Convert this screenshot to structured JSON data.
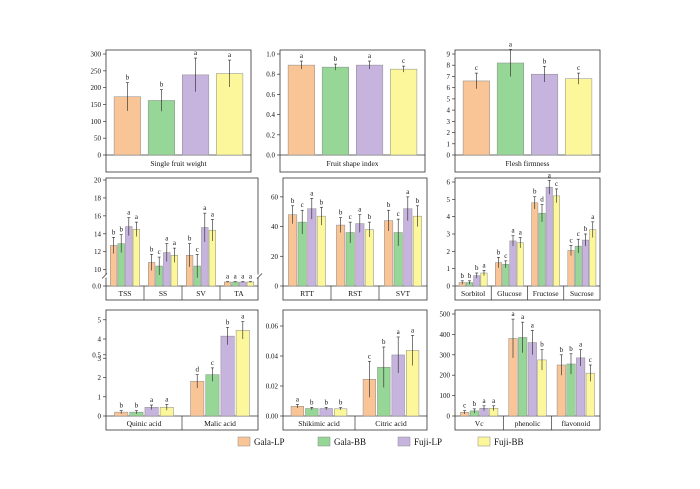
{
  "colors": {
    "Gala-LP": "#f9c597",
    "Gala-BB": "#96d696",
    "Fuji-LP": "#c7b4de",
    "Fuji-BB": "#fcf79a",
    "stroke": "#8a8a8a",
    "axis": "#333333"
  },
  "legend": [
    "Gala-LP",
    "Gala-BB",
    "Fuji-LP",
    "Fuji-BB"
  ],
  "chart_data": [
    {
      "type": "bar",
      "title": "",
      "groups": [
        "Single fruit weight"
      ],
      "series": [
        "Gala-LP",
        "Gala-BB",
        "Fuji-LP",
        "Fuji-BB"
      ],
      "values": [
        [
          173,
          162,
          238,
          242
        ]
      ],
      "errors": [
        [
          42,
          32,
          50,
          40
        ]
      ],
      "letters": [
        [
          "b",
          "b",
          "a",
          "a"
        ]
      ],
      "ylim": [
        0,
        300
      ],
      "yticks": [
        0,
        50,
        100,
        150,
        200,
        250,
        300
      ],
      "yticklabels": [
        "0",
        "50",
        "100",
        "150",
        "200",
        "250",
        "300"
      ]
    },
    {
      "type": "bar",
      "title": "",
      "groups": [
        "Fruit shape index"
      ],
      "series": [
        "Gala-LP",
        "Gala-BB",
        "Fuji-LP",
        "Fuji-BB"
      ],
      "values": [
        [
          0.89,
          0.87,
          0.89,
          0.85
        ]
      ],
      "errors": [
        [
          0.04,
          0.03,
          0.04,
          0.03
        ]
      ],
      "letters": [
        [
          "a",
          "b",
          "a",
          "c"
        ]
      ],
      "ylim": [
        0,
        1.0
      ],
      "yticks": [
        0,
        0.2,
        0.4,
        0.6,
        0.8,
        1.0
      ],
      "yticklabels": [
        "0.0",
        "0.2",
        "0.4",
        "0.6",
        "0.8",
        "1.0"
      ]
    },
    {
      "type": "bar",
      "title": "",
      "groups": [
        "Flesh firmness"
      ],
      "series": [
        "Gala-LP",
        "Gala-BB",
        "Fuji-LP",
        "Fuji-BB"
      ],
      "values": [
        [
          6.6,
          8.2,
          7.2,
          6.8
        ]
      ],
      "errors": [
        [
          0.7,
          1.2,
          0.7,
          0.5
        ]
      ],
      "letters": [
        [
          "c",
          "a",
          "b",
          "c"
        ]
      ],
      "ylim": [
        0,
        9
      ],
      "yticks": [
        0,
        1,
        2,
        3,
        4,
        5,
        6,
        7,
        8,
        9
      ],
      "yticklabels": [
        "0",
        "1",
        "2",
        "3",
        "4",
        "5",
        "6",
        "7",
        "8",
        "9"
      ]
    },
    {
      "type": "bar",
      "title": "",
      "groups": [
        "TSS",
        "SS",
        "SV",
        "TA"
      ],
      "series": [
        "Gala-LP",
        "Gala-BB",
        "Fuji-LP",
        "Fuji-BB"
      ],
      "values": [
        [
          12.7,
          12.9,
          14.8,
          14.5
        ],
        [
          10.8,
          10.4,
          11.9,
          11.6
        ],
        [
          11.6,
          10.4,
          14.7,
          14.4
        ],
        [
          0.2,
          0.2,
          0.2,
          0.2
        ]
      ],
      "errors": [
        [
          0.9,
          1.0,
          1.0,
          0.8
        ],
        [
          0.9,
          1.0,
          1.0,
          0.8
        ],
        [
          1.3,
          1.3,
          1.6,
          1.2
        ],
        [
          0.02,
          0.02,
          0.02,
          0.02
        ]
      ],
      "letters": [
        [
          "b",
          "b",
          "a",
          "a"
        ],
        [
          "b",
          "c",
          "a",
          "a"
        ],
        [
          "b",
          "c",
          "a",
          "a"
        ],
        [
          "a",
          "a",
          "a",
          "a"
        ]
      ],
      "ylim": [
        0,
        20
      ],
      "axis_break": [
        0.4,
        9.4
      ],
      "yticks": [
        0,
        0.5,
        10,
        12,
        14,
        16,
        18,
        20
      ],
      "yticklabels": [
        "0.0",
        "0.5",
        "10",
        "12",
        "14",
        "16",
        "18",
        "20"
      ]
    },
    {
      "type": "bar",
      "title": "",
      "groups": [
        "RTT",
        "RST",
        "SVT"
      ],
      "series": [
        "Gala-LP",
        "Gala-BB",
        "Fuji-LP",
        "Fuji-BB"
      ],
      "values": [
        [
          48,
          43,
          52,
          47
        ],
        [
          41,
          36,
          42,
          38
        ],
        [
          44,
          36,
          52,
          47
        ]
      ],
      "errors": [
        [
          6,
          8,
          7,
          6
        ],
        [
          5,
          7,
          6,
          5
        ],
        [
          7,
          9,
          8,
          7
        ]
      ],
      "letters": [
        [
          "b",
          "c",
          "a",
          "b"
        ],
        [
          "b",
          "c",
          "a",
          "b"
        ],
        [
          "b",
          "c",
          "a",
          "b"
        ]
      ],
      "ylim": [
        0,
        70
      ],
      "yticks": [
        0,
        20,
        40,
        60
      ],
      "yticklabels": [
        "0",
        "20",
        "40",
        "60"
      ]
    },
    {
      "type": "bar",
      "title": "",
      "groups": [
        "Sorbitol",
        "Glucose",
        "Fructose",
        "Sucrose"
      ],
      "series": [
        "Gala-LP",
        "Gala-BB",
        "Fuji-LP",
        "Fuji-BB"
      ],
      "values": [
        [
          0.2,
          0.2,
          0.6,
          0.75
        ],
        [
          1.35,
          1.25,
          2.6,
          2.5
        ],
        [
          4.8,
          4.2,
          5.7,
          5.2
        ],
        [
          2.05,
          2.3,
          2.65,
          3.25
        ]
      ],
      "errors": [
        [
          0.1,
          0.1,
          0.15,
          0.15
        ],
        [
          0.3,
          0.2,
          0.3,
          0.3
        ],
        [
          0.35,
          0.5,
          0.4,
          0.4
        ],
        [
          0.3,
          0.4,
          0.35,
          0.45
        ]
      ],
      "letters": [
        [
          "b",
          "b",
          "b",
          "a"
        ],
        [
          "b",
          "c",
          "a",
          "a"
        ],
        [
          "b",
          "d",
          "a",
          "c"
        ],
        [
          "c",
          "c",
          "b",
          "a"
        ]
      ],
      "ylim": [
        0,
        6
      ],
      "yticks": [
        0,
        1,
        2,
        3,
        4,
        5,
        6
      ],
      "yticklabels": [
        "0",
        "1",
        "2",
        "3",
        "4",
        "5",
        "6"
      ]
    },
    {
      "type": "bar",
      "title": "",
      "groups": [
        "Quinic acid",
        "Malic acid"
      ],
      "series": [
        "Gala-LP",
        "Gala-BB",
        "Fuji-LP",
        "Fuji-BB"
      ],
      "values": [
        [
          0.2,
          0.2,
          0.45,
          0.45
        ],
        [
          1.8,
          2.15,
          4.15,
          4.45
        ]
      ],
      "errors": [
        [
          0.08,
          0.08,
          0.12,
          0.15
        ],
        [
          0.35,
          0.35,
          0.45,
          0.45
        ]
      ],
      "letters": [
        [
          "b",
          "b",
          "a",
          "a"
        ],
        [
          "d",
          "c",
          "b",
          "a"
        ]
      ],
      "ylim": [
        0,
        5.3
      ],
      "yticks": [
        0,
        1,
        2,
        3,
        4,
        5
      ],
      "yticklabels": [
        "0",
        "1",
        "2",
        "3",
        "4",
        "5"
      ]
    },
    {
      "type": "bar",
      "title": "",
      "groups": [
        "Shikimic acid",
        "Citric acid"
      ],
      "series": [
        "Gala-LP",
        "Gala-BB",
        "Fuji-LP",
        "Fuji-BB"
      ],
      "values": [
        [
          0.0065,
          0.005,
          0.005,
          0.0048
        ],
        [
          0.0245,
          0.0325,
          0.0407,
          0.0437
        ]
      ],
      "errors": [
        [
          0.0012,
          0.0008,
          0.0008,
          0.0008
        ],
        [
          0.012,
          0.0135,
          0.012,
          0.01
        ]
      ],
      "letters": [
        [
          "a",
          "b",
          "b",
          "b"
        ],
        [
          "c",
          "b",
          "a",
          "a"
        ]
      ],
      "ylim": [
        0,
        0.068
      ],
      "yticks": [
        0,
        0.02,
        0.04,
        0.06
      ],
      "yticklabels": [
        "0.00",
        "0.02",
        "0.04",
        "0.06"
      ]
    },
    {
      "type": "bar",
      "title": "",
      "groups": [
        "Vc",
        "phenolic",
        "flavonoid"
      ],
      "series": [
        "Gala-LP",
        "Gala-BB",
        "Fuji-LP",
        "Fuji-BB"
      ],
      "values": [
        [
          18,
          25,
          38,
          38
        ],
        [
          380,
          385,
          360,
          275
        ],
        [
          250,
          255,
          285,
          210
        ]
      ],
      "errors": [
        [
          8,
          10,
          12,
          12
        ],
        [
          95,
          75,
          60,
          50
        ],
        [
          50,
          50,
          40,
          40
        ]
      ],
      "letters": [
        [
          "c",
          "b",
          "a",
          "a"
        ],
        [
          "a",
          "a",
          "a",
          "b"
        ],
        [
          "b",
          "b",
          "a",
          "c"
        ]
      ],
      "ylim": [
        0,
        500
      ],
      "yticks": [
        0,
        100,
        200,
        300,
        400,
        500
      ],
      "yticklabels": [
        "0",
        "100",
        "200",
        "300",
        "400",
        "500"
      ]
    }
  ]
}
